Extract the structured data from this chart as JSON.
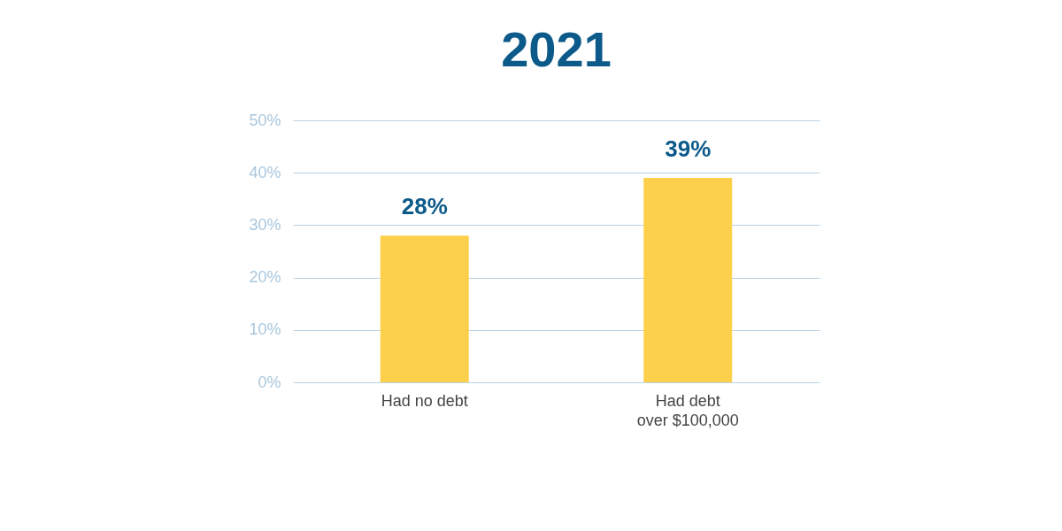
{
  "chart_data": {
    "type": "bar",
    "title": "2021",
    "categories": [
      "Had no debt",
      "Had debt over $100,000"
    ],
    "values": [
      28,
      39
    ],
    "color": "#fcd04b",
    "value_labels": [
      "28%",
      "39%"
    ],
    "ylim": [
      0,
      50
    ],
    "yticks": [
      {
        "value": 0,
        "label": "0%"
      },
      {
        "value": 10,
        "label": "10%"
      },
      {
        "value": 20,
        "label": "20%"
      },
      {
        "value": 30,
        "label": "30%"
      },
      {
        "value": 40,
        "label": "40%"
      },
      {
        "value": 50,
        "label": "50%"
      }
    ],
    "grid": "y"
  }
}
